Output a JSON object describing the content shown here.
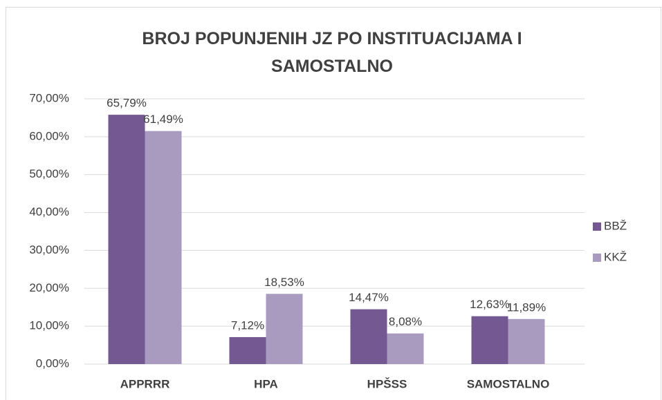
{
  "chart_data": {
    "type": "bar",
    "title": "BROJ POPUNJENIH JZ PO INSTITUACIJAMA I SAMOSTALNO",
    "categories": [
      "APPRRR",
      "HPA",
      "HPŠSS",
      "SAMOSTALNO"
    ],
    "series": [
      {
        "name": "BBŽ",
        "color": "#735891",
        "values": [
          65.79,
          7.12,
          14.47,
          12.63
        ],
        "value_labels": [
          "65,79%",
          "7,12%",
          "14,47%",
          "12,63%"
        ]
      },
      {
        "name": "KKŽ",
        "color": "#a99bc0",
        "values": [
          61.49,
          18.53,
          8.08,
          11.89
        ],
        "value_labels": [
          "61,49%",
          "18,53%",
          "8,08%",
          "11,89%"
        ]
      }
    ],
    "ylim": [
      0,
      70
    ],
    "yticks": [
      {
        "value": 0,
        "label": "0,00%"
      },
      {
        "value": 10,
        "label": "10,00%"
      },
      {
        "value": 20,
        "label": "20,00%"
      },
      {
        "value": 30,
        "label": "30,00%"
      },
      {
        "value": 40,
        "label": "40,00%"
      },
      {
        "value": 50,
        "label": "50,00%"
      },
      {
        "value": 60,
        "label": "60,00%"
      },
      {
        "value": 70,
        "label": "70,00%"
      }
    ],
    "grid": true,
    "legend": "right"
  }
}
